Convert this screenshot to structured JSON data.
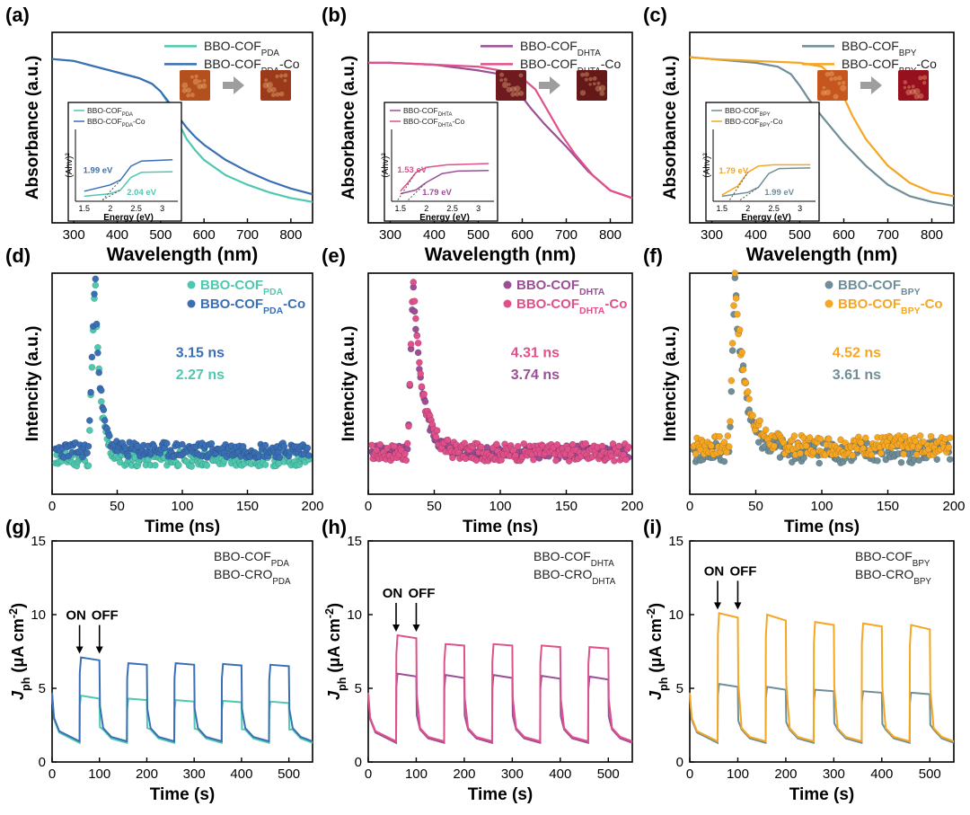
{
  "chart_data": [
    {
      "panel": "(a)",
      "type": "line",
      "xlabel": "Wavelength (nm)",
      "ylabel": "Absorbance (a.u.)",
      "xlim": [
        250,
        850
      ],
      "ylim": [
        0,
        1
      ],
      "xticks": [
        300,
        400,
        500,
        600,
        700,
        800
      ],
      "series": [
        {
          "name": "BBO-COF",
          "sub": "PDA",
          "suffix": "",
          "color": "#4ec9b0",
          "x": [
            250,
            300,
            350,
            400,
            450,
            480,
            500,
            520,
            540,
            560,
            580,
            600,
            650,
            700,
            750,
            800,
            850
          ],
          "y": [
            0.86,
            0.85,
            0.82,
            0.79,
            0.76,
            0.73,
            0.69,
            0.62,
            0.53,
            0.44,
            0.38,
            0.33,
            0.25,
            0.2,
            0.16,
            0.13,
            0.11
          ]
        },
        {
          "name": "BBO-COF",
          "sub": "PDA",
          "suffix": "-Co",
          "color": "#3a6fb5",
          "x": [
            250,
            300,
            350,
            400,
            450,
            480,
            500,
            520,
            540,
            560,
            580,
            600,
            650,
            700,
            750,
            800,
            850
          ],
          "y": [
            0.86,
            0.85,
            0.82,
            0.79,
            0.76,
            0.73,
            0.69,
            0.63,
            0.56,
            0.5,
            0.45,
            0.41,
            0.33,
            0.27,
            0.22,
            0.18,
            0.15
          ]
        }
      ],
      "inset": {
        "xlabel": "Energy (eV)",
        "ylabel": "(Ahv)²",
        "xlim": [
          1.4,
          3.3
        ],
        "ylim": [
          0,
          1
        ],
        "xticks": [
          1.5,
          2.0,
          2.5,
          3.0
        ],
        "legend": [
          {
            "name": "BBO-COF",
            "sub": "PDA",
            "suffix": "",
            "color": "#4ec9b0"
          },
          {
            "name": "BBO-COF",
            "sub": "PDA",
            "suffix": "-Co",
            "color": "#3a6fb5"
          }
        ],
        "series": [
          {
            "color": "#4ec9b0",
            "x": [
              1.5,
              2.0,
              2.2,
              2.4,
              2.6,
              3.2
            ],
            "y": [
              0.08,
              0.12,
              0.18,
              0.38,
              0.46,
              0.47
            ]
          },
          {
            "color": "#3a6fb5",
            "x": [
              1.5,
              2.0,
              2.2,
              2.4,
              2.6,
              3.2
            ],
            "y": [
              0.16,
              0.26,
              0.34,
              0.56,
              0.64,
              0.66
            ]
          }
        ],
        "annotations": [
          {
            "text": "1.99 eV",
            "x": 1.48,
            "y": 0.45,
            "color": "#3a6fb5"
          },
          {
            "text": "2.04 eV",
            "x": 2.32,
            "y": 0.1,
            "color": "#4ec9b0"
          }
        ]
      },
      "photos": [
        {
          "x": 0,
          "color": "#b4501e"
        },
        {
          "x": 1,
          "color": "#9a3a1a"
        }
      ]
    },
    {
      "panel": "(b)",
      "type": "line",
      "xlabel": "Wavelength (nm)",
      "ylabel": "Absorbance (a.u.)",
      "xlim": [
        250,
        850
      ],
      "ylim": [
        0,
        1
      ],
      "xticks": [
        300,
        400,
        500,
        600,
        700,
        800
      ],
      "series": [
        {
          "name": "BBO-COF",
          "sub": "DHTA",
          "suffix": "",
          "color": "#9a4f96",
          "x": [
            250,
            300,
            400,
            500,
            550,
            580,
            600,
            620,
            650,
            700,
            750,
            800,
            850
          ],
          "y": [
            0.84,
            0.84,
            0.83,
            0.8,
            0.78,
            0.72,
            0.66,
            0.6,
            0.52,
            0.4,
            0.27,
            0.17,
            0.13
          ]
        },
        {
          "name": "BBO-COF",
          "sub": "DHTA",
          "suffix": "-Co",
          "color": "#e0508a",
          "x": [
            250,
            300,
            400,
            500,
            550,
            600,
            630,
            660,
            690,
            720,
            760,
            800,
            850
          ],
          "y": [
            0.84,
            0.84,
            0.83,
            0.82,
            0.8,
            0.76,
            0.7,
            0.58,
            0.46,
            0.36,
            0.25,
            0.17,
            0.13
          ]
        }
      ],
      "inset": {
        "xlabel": "Energy (eV)",
        "ylabel": "(Ahv)²",
        "xlim": [
          1.4,
          3.3
        ],
        "ylim": [
          0,
          1
        ],
        "xticks": [
          1.5,
          2.0,
          2.5,
          3.0
        ],
        "legend": [
          {
            "name": "BBO-COF",
            "sub": "DHTA",
            "suffix": "",
            "color": "#9a4f96"
          },
          {
            "name": "BBO-COF",
            "sub": "DHTA",
            "suffix": "-Co",
            "color": "#e0508a"
          }
        ],
        "series": [
          {
            "color": "#9a4f96",
            "x": [
              1.5,
              1.8,
              2.0,
              2.3,
              2.6,
              3.2
            ],
            "y": [
              0.12,
              0.18,
              0.3,
              0.44,
              0.48,
              0.49
            ]
          },
          {
            "color": "#e0508a",
            "x": [
              1.5,
              1.65,
              1.8,
              2.0,
              2.4,
              3.2
            ],
            "y": [
              0.16,
              0.3,
              0.46,
              0.54,
              0.58,
              0.6
            ]
          }
        ],
        "annotations": [
          {
            "text": "1.53 eV",
            "x": 1.44,
            "y": 0.46,
            "color": "#e0508a"
          },
          {
            "text": "1.79 eV",
            "x": 1.92,
            "y": 0.1,
            "color": "#9a4f96"
          }
        ]
      },
      "photos": [
        {
          "x": 0,
          "color": "#6e1a1e"
        },
        {
          "x": 1,
          "color": "#651818"
        }
      ]
    },
    {
      "panel": "(c)",
      "type": "line",
      "xlabel": "Wavelength (nm)",
      "ylabel": "Absorbance (a.u.)",
      "xlim": [
        250,
        850
      ],
      "ylim": [
        0,
        1
      ],
      "xticks": [
        300,
        400,
        500,
        600,
        700,
        800
      ],
      "series": [
        {
          "name": "BBO-COF",
          "sub": "BPY",
          "suffix": "",
          "color": "#6f8e98",
          "x": [
            250,
            300,
            400,
            450,
            480,
            500,
            520,
            550,
            600,
            650,
            700,
            750,
            800,
            850
          ],
          "y": [
            0.87,
            0.86,
            0.84,
            0.82,
            0.78,
            0.72,
            0.65,
            0.56,
            0.42,
            0.3,
            0.2,
            0.14,
            0.11,
            0.09
          ]
        },
        {
          "name": "BBO-COF",
          "sub": "BPY",
          "suffix": "-Co",
          "color": "#f5a623",
          "x": [
            250,
            300,
            400,
            500,
            550,
            580,
            600,
            620,
            650,
            700,
            750,
            800,
            850
          ],
          "y": [
            0.87,
            0.86,
            0.85,
            0.84,
            0.82,
            0.76,
            0.66,
            0.56,
            0.44,
            0.3,
            0.21,
            0.16,
            0.14
          ]
        }
      ],
      "inset": {
        "xlabel": "Energy (eV)",
        "ylabel": "(Ahv)²",
        "xlim": [
          1.4,
          3.3
        ],
        "ylim": [
          0,
          1
        ],
        "xticks": [
          1.5,
          2.0,
          2.5,
          3.0
        ],
        "legend": [
          {
            "name": "BBO-COF",
            "sub": "BPY",
            "suffix": "",
            "color": "#6f8e98"
          },
          {
            "name": "BBO-COF",
            "sub": "BPY",
            "suffix": "-Co",
            "color": "#f5a623"
          }
        ],
        "series": [
          {
            "color": "#6f8e98",
            "x": [
              1.5,
              2.0,
              2.2,
              2.4,
              2.6,
              3.2
            ],
            "y": [
              0.08,
              0.14,
              0.22,
              0.44,
              0.52,
              0.53
            ]
          },
          {
            "color": "#f5a623",
            "x": [
              1.5,
              1.8,
              2.0,
              2.2,
              2.5,
              3.2
            ],
            "y": [
              0.1,
              0.24,
              0.46,
              0.56,
              0.58,
              0.58
            ]
          }
        ],
        "annotations": [
          {
            "text": "1.79 eV",
            "x": 1.44,
            "y": 0.44,
            "color": "#f5a623"
          },
          {
            "text": "1.99 eV",
            "x": 2.32,
            "y": 0.1,
            "color": "#6f8e98"
          }
        ]
      },
      "photos": [
        {
          "x": 0,
          "color": "#c4561e"
        },
        {
          "x": 1,
          "color": "#96101e"
        }
      ]
    },
    {
      "panel": "(d)",
      "type": "scatter",
      "xlabel": "Time (ns)",
      "ylabel": "Intencity (a.u.)",
      "xlim": [
        0,
        200
      ],
      "ylim": [
        0,
        1
      ],
      "xticks": [
        0,
        50,
        100,
        150,
        200
      ],
      "decay": {
        "rise": 28,
        "peak": 33,
        "tau": 4.0,
        "tail": 0.0
      },
      "series": [
        {
          "name": "BBO-COF",
          "sub": "PDA",
          "suffix": "",
          "color": "#4ec9b0",
          "base": 0.16,
          "noise": 0.035,
          "seed": 11,
          "peak_y": 0.98
        },
        {
          "name": "BBO-COF",
          "sub": "PDA",
          "suffix": "-Co",
          "color": "#3a6fb5",
          "base": 0.2,
          "noise": 0.035,
          "seed": 23,
          "peak_y": 1.0
        }
      ],
      "annotations": [
        {
          "text": "3.15 ns",
          "x": 95,
          "y": 0.62,
          "color": "#3a6fb5"
        },
        {
          "text": "2.27 ns",
          "x": 95,
          "y": 0.52,
          "color": "#4ec9b0"
        }
      ]
    },
    {
      "panel": "(e)",
      "type": "scatter",
      "xlabel": "Time (ns)",
      "ylabel": "Intencity (a.u.)",
      "xlim": [
        0,
        200
      ],
      "ylim": [
        0,
        1
      ],
      "xticks": [
        0,
        50,
        100,
        150,
        200
      ],
      "decay": {
        "rise": 30,
        "peak": 34,
        "tau": 7.0,
        "tail": 0.0
      },
      "series": [
        {
          "name": "BBO-COF",
          "sub": "DHTA",
          "suffix": "",
          "color": "#9a4f96",
          "base": 0.19,
          "noise": 0.03,
          "seed": 5,
          "peak_y": 0.96
        },
        {
          "name": "BBO-COF",
          "sub": "DHTA",
          "suffix": "-Co",
          "color": "#e0508a",
          "base": 0.19,
          "noise": 0.04,
          "seed": 17,
          "peak_y": 1.0
        }
      ],
      "annotations": [
        {
          "text": "4.31 ns",
          "x": 108,
          "y": 0.62,
          "color": "#e0508a"
        },
        {
          "text": "3.74 ns",
          "x": 108,
          "y": 0.52,
          "color": "#9a4f96"
        }
      ]
    },
    {
      "panel": "(f)",
      "type": "scatter",
      "xlabel": "Time (ns)",
      "ylabel": "Intencity (a.u.)",
      "xlim": [
        0,
        200
      ],
      "ylim": [
        0,
        1
      ],
      "xticks": [
        0,
        50,
        100,
        150,
        200
      ],
      "decay": {
        "rise": 30,
        "peak": 34,
        "tau": 8.0,
        "tail": 0.0
      },
      "series": [
        {
          "name": "BBO-COF",
          "sub": "BPY",
          "suffix": "",
          "color": "#6f8e98",
          "base": 0.19,
          "noise": 0.05,
          "seed": 41,
          "peak_y": 0.96
        },
        {
          "name": "BBO-COF",
          "sub": "BPY",
          "suffix": "-Co",
          "color": "#f5a623",
          "base": 0.22,
          "noise": 0.045,
          "seed": 7,
          "peak_y": 1.0
        }
      ],
      "annotations": [
        {
          "text": "4.52 ns",
          "x": 108,
          "y": 0.62,
          "color": "#f5a623"
        },
        {
          "text": "3.61 ns",
          "x": 108,
          "y": 0.52,
          "color": "#6f8e98"
        }
      ]
    },
    {
      "panel": "(g)",
      "type": "line",
      "xlabel": "Time (s)",
      "ylabel": "J",
      "ylabel_sub": "ph",
      "ylabel_unit": " (μA cm",
      "ylabel_sup": "-2",
      "ylabel_end": ")",
      "xlim": [
        0,
        550
      ],
      "ylim": [
        0,
        15
      ],
      "xticks": [
        0,
        100,
        200,
        300,
        400,
        500
      ],
      "yticks": [
        0,
        5,
        10,
        15
      ],
      "onoff": {
        "on_label": "ON",
        "off_label": "OFF",
        "on_x": 58,
        "off_x": 100
      },
      "cycles": [
        [
          58,
          100
        ],
        [
          158,
          200
        ],
        [
          258,
          300
        ],
        [
          358,
          400
        ],
        [
          458,
          500
        ]
      ],
      "series": [
        {
          "name": "BBO-COF",
          "sub": "PDA",
          "suffix": "",
          "color": "#4ec9b0",
          "dark": 1.3,
          "on_start": [
            4.5,
            4.3,
            4.2,
            4.15,
            4.1
          ],
          "on_end": [
            4.3,
            4.2,
            4.1,
            4.05,
            4.0
          ]
        },
        {
          "name": "BBO-CRO",
          "sub": "PDA",
          "suffix": "",
          "color": "#3a6fb5",
          "dark": 1.4,
          "on_start": [
            7.1,
            6.7,
            6.7,
            6.65,
            6.6
          ],
          "on_end": [
            6.9,
            6.6,
            6.6,
            6.55,
            6.5
          ]
        }
      ]
    },
    {
      "panel": "(h)",
      "type": "line",
      "xlabel": "Time (s)",
      "ylabel": "J",
      "ylabel_sub": "ph",
      "ylabel_unit": " (μA cm",
      "ylabel_sup": "-2",
      "ylabel_end": ")",
      "xlim": [
        0,
        550
      ],
      "ylim": [
        0,
        15
      ],
      "xticks": [
        0,
        100,
        200,
        300,
        400,
        500
      ],
      "yticks": [
        0,
        5,
        10,
        15
      ],
      "onoff": {
        "on_label": "ON",
        "off_label": "OFF",
        "on_x": 58,
        "off_x": 100
      },
      "cycles": [
        [
          58,
          100
        ],
        [
          158,
          200
        ],
        [
          258,
          300
        ],
        [
          358,
          400
        ],
        [
          458,
          500
        ]
      ],
      "series": [
        {
          "name": "BBO-COF",
          "sub": "DHTA",
          "suffix": "",
          "color": "#9a4f96",
          "dark": 1.3,
          "on_start": [
            6.0,
            5.9,
            5.9,
            5.85,
            5.8
          ],
          "on_end": [
            5.8,
            5.7,
            5.7,
            5.65,
            5.6
          ]
        },
        {
          "name": "BBO-CRO",
          "sub": "DHTA",
          "suffix": "",
          "color": "#e0508a",
          "dark": 1.4,
          "on_start": [
            8.6,
            8.0,
            8.0,
            7.9,
            7.8
          ],
          "on_end": [
            8.4,
            7.9,
            7.9,
            7.8,
            7.7
          ]
        }
      ]
    },
    {
      "panel": "(i)",
      "type": "line",
      "xlabel": "Time (s)",
      "ylabel": "J",
      "ylabel_sub": "ph",
      "ylabel_unit": " (μA cm",
      "ylabel_sup": "-2",
      "ylabel_end": ")",
      "xlim": [
        0,
        550
      ],
      "ylim": [
        0,
        15
      ],
      "xticks": [
        0,
        100,
        200,
        300,
        400,
        500
      ],
      "yticks": [
        0,
        5,
        10,
        15
      ],
      "onoff": {
        "on_label": "ON",
        "off_label": "OFF",
        "on_x": 58,
        "off_x": 100
      },
      "cycles": [
        [
          58,
          100
        ],
        [
          158,
          200
        ],
        [
          258,
          300
        ],
        [
          358,
          400
        ],
        [
          458,
          500
        ]
      ],
      "series": [
        {
          "name": "BBO-COF",
          "sub": "BPY",
          "suffix": "",
          "color": "#6f8e98",
          "dark": 1.3,
          "on_start": [
            5.3,
            5.1,
            4.9,
            4.8,
            4.7
          ],
          "on_end": [
            5.1,
            4.9,
            4.8,
            4.7,
            4.6
          ]
        },
        {
          "name": "BBO-CRO",
          "sub": "BPY",
          "suffix": "",
          "color": "#f5a623",
          "dark": 1.4,
          "on_start": [
            10.1,
            10.0,
            9.5,
            9.4,
            9.3
          ],
          "on_end": [
            9.8,
            9.6,
            9.3,
            9.2,
            9.0
          ]
        }
      ]
    }
  ]
}
